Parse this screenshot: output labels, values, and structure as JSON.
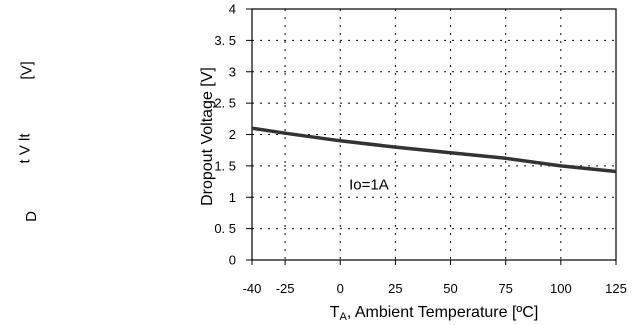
{
  "ghost_axis_fragments": [
    "[V]",
    "t V lt",
    "D"
  ],
  "chart_data": {
    "type": "line",
    "title": "",
    "xlabel_main": "T",
    "xlabel_sub": "A",
    "xlabel_rest": ", Ambient Temperature [ºC]",
    "ylabel": "Dropout Voltage [V]",
    "xlim": [
      -40,
      125
    ],
    "ylim": [
      0,
      4
    ],
    "x_ticks": [
      "-40",
      "-25",
      "0",
      "25",
      "50",
      "75",
      "100",
      "125"
    ],
    "x_tick_values": [
      -40,
      -25,
      0,
      25,
      50,
      75,
      100,
      125
    ],
    "x_grid_values": [
      -25,
      0,
      25,
      50,
      75,
      100
    ],
    "y_ticks": [
      "0",
      "0. 5",
      "1",
      "1. 5",
      "2",
      "2. 5",
      "3",
      "3. 5",
      "4"
    ],
    "y_tick_values": [
      0,
      0.5,
      1,
      1.5,
      2,
      2.5,
      3,
      3.5,
      4
    ],
    "grid": "dashed",
    "series": [
      {
        "x": [
          -40,
          -25,
          0,
          25,
          50,
          75,
          100,
          125
        ],
        "y": [
          2.1,
          2.02,
          1.9,
          1.8,
          1.71,
          1.62,
          1.5,
          1.41
        ],
        "color": "#333333"
      }
    ],
    "annotations": [
      {
        "text": "Io=1A",
        "x": 13,
        "y": 1.2
      }
    ]
  }
}
